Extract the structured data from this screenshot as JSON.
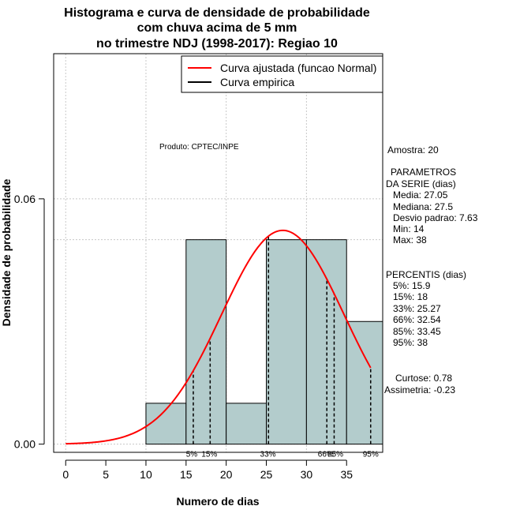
{
  "chart_data": {
    "type": "bar",
    "title_lines": [
      "Histograma e curva de densidade de probabilidade",
      "com chuva acima de 5 mm",
      "no trimestre NDJ (1998-2017): Regiao 10"
    ],
    "xlabel": "Numero de dias",
    "ylabel": "Densidade de probabilidade",
    "xlim": [
      -1.5,
      39.5
    ],
    "ylim": [
      -0.002,
      0.0955
    ],
    "x_ticks": [
      0,
      5,
      10,
      15,
      20,
      25,
      30,
      35
    ],
    "x_tick_labels": [
      "0",
      "5",
      "10",
      "15",
      "20",
      "25",
      "30",
      "35"
    ],
    "y_ticks": [
      0.0,
      0.06
    ],
    "y_tick_labels": [
      "0.00",
      "0.06"
    ],
    "grid": true,
    "grid_x": [
      0,
      10,
      20,
      30
    ],
    "grid_y": [
      0.0,
      0.06
    ],
    "reference_line_y": 0.05,
    "histogram": {
      "bin_edges": [
        10,
        15,
        20,
        25,
        30,
        35,
        40
      ],
      "density": [
        0.01,
        0.05,
        0.01,
        0.05,
        0.05,
        0.03
      ],
      "color": "#b3cccc"
    },
    "normal_curve": {
      "mean": 27.05,
      "sd": 7.63,
      "x_range": [
        0,
        38
      ],
      "color": "#ff0000"
    },
    "percentile_lines": [
      {
        "label": "5%",
        "x": 15.9
      },
      {
        "label": "15%",
        "x": 18
      },
      {
        "label": "33%",
        "x": 25.27
      },
      {
        "label": "66%",
        "x": 32.54
      },
      {
        "label": "85%",
        "x": 33.45
      },
      {
        "label": "95%",
        "x": 38
      }
    ],
    "percentile_label_positions": [
      {
        "text": "5%",
        "x": 15.7
      },
      {
        "text": "15%",
        "x": 17.9
      },
      {
        "text": "33%",
        "x": 25.2
      },
      {
        "text": "66%",
        "x": 32.4
      },
      {
        "text": "85%",
        "x": 33.6
      },
      {
        "text": "95%",
        "x": 38
      }
    ],
    "legend": {
      "position": "top-right",
      "entries": [
        {
          "label": "Curva ajustada (funcao Normal)",
          "color": "#ff0000"
        },
        {
          "label": "Curva empirica",
          "color": "#000000"
        }
      ]
    },
    "product_label": "Produto: CPTEC/INPE",
    "stats": {
      "amostra": "Amostra: 20",
      "params_header_1": "PARAMETROS",
      "params_header_2": "DA SERIE (dias)",
      "media": "Media: 27.05",
      "mediana": "Mediana: 27.5",
      "desvio": "Desvio padrao: 7.63",
      "min": "Min: 14",
      "max": "Max: 38",
      "percentis_header": "PERCENTIS (dias)",
      "p5": "5%: 15.9",
      "p15": "15%: 18",
      "p33": "33%: 25.27",
      "p66": "66%: 32.54",
      "p85": "85%: 33.45",
      "p95": "95%: 38",
      "curtose": "Curtose: 0.78",
      "assimetria": "Assimetria: -0.23"
    }
  }
}
